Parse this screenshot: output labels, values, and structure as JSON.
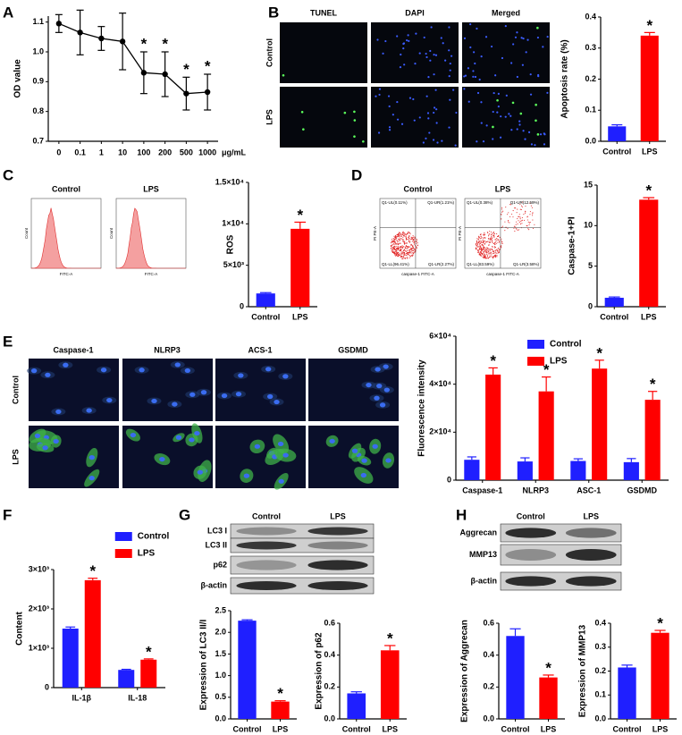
{
  "chart_data": [
    {
      "type": "line",
      "y_label": "OD value",
      "x_label": "μg/mL",
      "categories": [
        "0",
        "0.1",
        "1",
        "10",
        "100",
        "200",
        "500",
        "1000"
      ],
      "values": [
        1.095,
        1.065,
        1.045,
        1.035,
        0.93,
        0.925,
        0.86,
        0.865
      ],
      "errors": [
        0.03,
        0.075,
        0.04,
        0.095,
        0.07,
        0.075,
        0.055,
        0.06
      ],
      "value_annotations": [
        null,
        null,
        null,
        null,
        "*",
        "*",
        "*",
        "*"
      ],
      "color": "#000000",
      "ylim": [
        0.7,
        1.12
      ],
      "yticks": [
        0.7,
        0.8,
        0.9,
        {
          "value": 1,
          "label": "1.0"
        },
        1.1
      ]
    },
    {
      "type": "bar",
      "y_label": "Apoptosis rate (%)",
      "categories": [
        "Control",
        "LPS"
      ],
      "values": [
        0.048,
        0.34
      ],
      "errors": [
        0.005,
        0.01
      ],
      "colors": [
        "#1f1fff",
        "#ff0000"
      ],
      "value_annotations": [
        null,
        "*"
      ],
      "ylim": [
        0,
        0.4
      ],
      "yticks": [
        {
          "value": 0,
          "label": "0.0"
        },
        0.1,
        0.2,
        0.3,
        0.4
      ]
    },
    {
      "type": "bar",
      "y_label": "ROS",
      "categories": [
        "Control",
        "LPS"
      ],
      "values": [
        1600,
        9400
      ],
      "errors": [
        100,
        800
      ],
      "colors": [
        "#1f1fff",
        "#ff0000"
      ],
      "value_annotations": [
        null,
        "*"
      ],
      "ylim": [
        0,
        15000
      ],
      "yticks": [
        0,
        {
          "value": 5000,
          "label": "5×10³"
        },
        {
          "value": 10000,
          "label": "1×10⁴"
        },
        {
          "value": 15000,
          "label": "1.5×10⁴"
        }
      ]
    },
    {
      "type": "bar",
      "y_label": "Caspase-1+PI",
      "categories": [
        "Control",
        "LPS"
      ],
      "values": [
        1.1,
        13.2
      ],
      "errors": [
        0.1,
        0.25
      ],
      "colors": [
        "#1f1fff",
        "#ff0000"
      ],
      "value_annotations": [
        null,
        "*"
      ],
      "ylim": [
        0,
        15
      ],
      "yticks": [
        0,
        5,
        10,
        15
      ]
    },
    {
      "type": "bar",
      "y_label": "Fluorescence intensity",
      "categories": [
        "Caspase-1",
        "NLRP3",
        "ASC-1",
        "GSDMD"
      ],
      "legend": "top-right",
      "series": [
        {
          "name": "Control",
          "color": "#1f1fff",
          "values": [
            8500,
            7800,
            8000,
            7500
          ],
          "errors": [
            1200,
            1500,
            900,
            1500
          ],
          "value_annotations": [
            null,
            null,
            null,
            null
          ]
        },
        {
          "name": "LPS",
          "color": "#ff0000",
          "values": [
            44000,
            37000,
            46500,
            33500
          ],
          "errors": [
            2800,
            6000,
            3500,
            3500
          ],
          "value_annotations": [
            "*",
            "*",
            "*",
            "*"
          ]
        }
      ],
      "ylim": [
        0,
        60000
      ],
      "yticks": [
        0,
        {
          "value": 20000,
          "label": "2×10⁴"
        },
        {
          "value": 40000,
          "label": "4×10⁴"
        },
        {
          "value": 60000,
          "label": "6×10⁴"
        }
      ]
    },
    {
      "type": "bar",
      "y_label": "Content",
      "categories": [
        "IL-1β",
        "IL-18"
      ],
      "legend": "above",
      "series": [
        {
          "name": "Control",
          "color": "#1f1fff",
          "values": [
            1500,
            450
          ],
          "errors": [
            40,
            15
          ],
          "value_annotations": [
            null,
            null
          ]
        },
        {
          "name": "LPS",
          "color": "#ff0000",
          "values": [
            2730,
            710
          ],
          "errors": [
            50,
            20
          ],
          "value_annotations": [
            "*",
            "*"
          ]
        }
      ],
      "ylim": [
        0,
        3000
      ],
      "yticks": [
        0,
        {
          "value": 1000,
          "label": "1×10³"
        },
        {
          "value": 2000,
          "label": "2×10³"
        },
        {
          "value": 3000,
          "label": "3×10³"
        }
      ]
    },
    {
      "type": "bar",
      "y_label": "Expression of LC3 II/I",
      "categories": [
        "Control",
        "LPS"
      ],
      "values": [
        2.27,
        0.4
      ],
      "errors": [
        0.02,
        0.02
      ],
      "colors": [
        "#1f1fff",
        "#ff0000"
      ],
      "value_annotations": [
        null,
        "*"
      ],
      "ylim": [
        0,
        2.5
      ],
      "yticks": [
        {
          "value": 0,
          "label": "0.0"
        },
        0.5,
        {
          "value": 1,
          "label": "1.0"
        },
        1.5,
        {
          "value": 2,
          "label": "2.0"
        },
        2.5
      ]
    },
    {
      "type": "bar",
      "y_label": "Expression of p62",
      "categories": [
        "Control",
        "LPS"
      ],
      "values": [
        0.16,
        0.43
      ],
      "errors": [
        0.01,
        0.03
      ],
      "colors": [
        "#1f1fff",
        "#ff0000"
      ],
      "value_annotations": [
        null,
        "*"
      ],
      "ylim": [
        0,
        0.6
      ],
      "yticks": [
        {
          "value": 0,
          "label": "0.0"
        },
        0.2,
        0.4,
        0.6
      ]
    },
    {
      "type": "bar",
      "y_label": "Expression of Aggrecan",
      "categories": [
        "Control",
        "LPS"
      ],
      "values": [
        0.52,
        0.26
      ],
      "errors": [
        0.045,
        0.015
      ],
      "colors": [
        "#1f1fff",
        "#ff0000"
      ],
      "value_annotations": [
        null,
        "*"
      ],
      "ylim": [
        0,
        0.6
      ],
      "yticks": [
        {
          "value": 0,
          "label": "0.0"
        },
        0.2,
        0.4,
        0.6
      ]
    },
    {
      "type": "bar",
      "y_label": "Expression of MMP13",
      "categories": [
        "Control",
        "LPS"
      ],
      "values": [
        0.215,
        0.36
      ],
      "errors": [
        0.01,
        0.01
      ],
      "colors": [
        "#1f1fff",
        "#ff0000"
      ],
      "value_annotations": [
        null,
        "*"
      ],
      "ylim": [
        0,
        0.4
      ],
      "yticks": [
        {
          "value": 0,
          "label": "0.0"
        },
        0.1,
        0.2,
        0.3,
        0.4
      ]
    }
  ],
  "panels": {
    "letters": [
      "A",
      "B",
      "C",
      "D",
      "E",
      "F",
      "G",
      "H"
    ],
    "b_images": {
      "columns": [
        "TUNEL",
        "DAPI",
        "Merged"
      ],
      "rows": [
        "Control",
        "LPS"
      ]
    },
    "c_histograms": {
      "titles": [
        "Control",
        "LPS"
      ],
      "x_label": "FITC-A",
      "y_label": "Count"
    },
    "d_scatter": {
      "titles": [
        "Control",
        "LPS"
      ],
      "x_label": "caspase-1 FITC-A",
      "y_label": "PI PE-A",
      "quadrants": [
        [
          "Q1-UL(0.11%)",
          "Q1-UR(1.21%)",
          "Q1-LL(96.41%)",
          "Q1-LR(2.27%)"
        ],
        [
          "Q1-UL(0.38%)",
          "Q1-UR(12.59%)",
          "Q1-LL(83.59%)",
          "Q1-LR(3.58%)"
        ]
      ]
    },
    "e_images": {
      "columns": [
        "Caspase-1",
        "NLRP3",
        "ACS-1",
        "GSDMD"
      ],
      "rows": [
        "Control",
        "LPS"
      ]
    },
    "g_blot": {
      "columns": [
        "Control",
        "LPS"
      ],
      "rows": [
        "LC3 I",
        "LC3 II",
        "p62",
        "β-actin"
      ]
    },
    "h_blot": {
      "columns": [
        "Control",
        "LPS"
      ],
      "rows": [
        "Aggrecan",
        "MMP13",
        "β-actin"
      ]
    }
  }
}
